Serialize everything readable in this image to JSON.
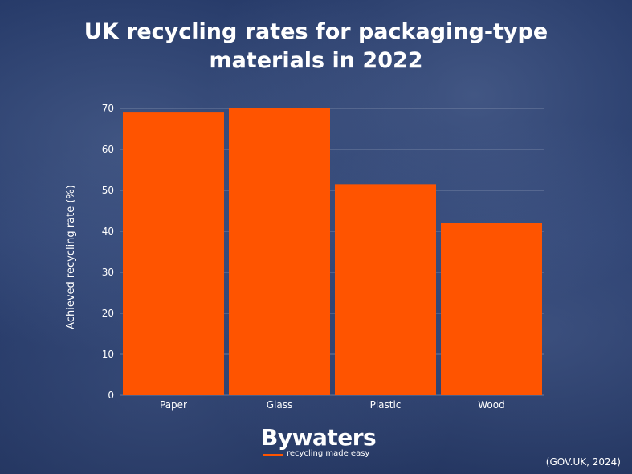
{
  "header": {
    "title_line1": "UK recycling rates for packaging-type",
    "title_line2": "materials in 2022"
  },
  "chart_data": {
    "type": "bar",
    "categories": [
      "Paper",
      "Glass",
      "Plastic",
      "Wood"
    ],
    "values": [
      69,
      70,
      51.5,
      42
    ],
    "xlabel": "",
    "ylabel": "Achieved recycling rate (%)",
    "ylim": [
      0,
      70
    ],
    "yticks": [
      0,
      10,
      20,
      30,
      40,
      50,
      60,
      70
    ],
    "grid": true,
    "legend": "none",
    "bar_color": "#ff5400"
  },
  "logo": {
    "name": "Bywaters",
    "tagline": "recycling made easy"
  },
  "source": "(GOV.UK, 2024)",
  "colors": {
    "background": "#1f3159",
    "accent": "#ff5400",
    "text": "#ffffff"
  }
}
